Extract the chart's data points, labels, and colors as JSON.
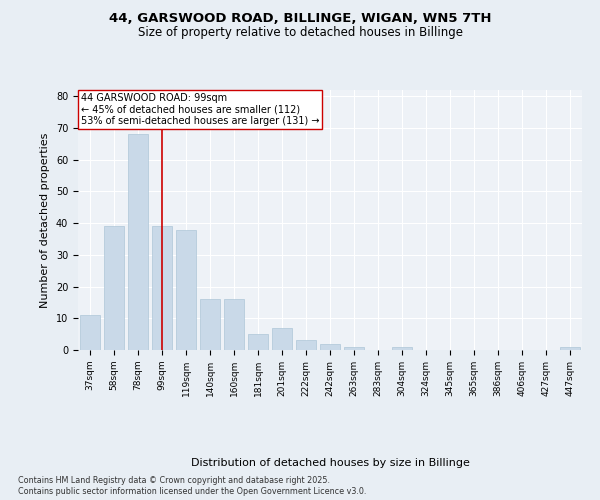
{
  "title1": "44, GARSWOOD ROAD, BILLINGE, WIGAN, WN5 7TH",
  "title2": "Size of property relative to detached houses in Billinge",
  "xlabel": "Distribution of detached houses by size in Billinge",
  "ylabel": "Number of detached properties",
  "categories": [
    "37sqm",
    "58sqm",
    "78sqm",
    "99sqm",
    "119sqm",
    "140sqm",
    "160sqm",
    "181sqm",
    "201sqm",
    "222sqm",
    "242sqm",
    "263sqm",
    "283sqm",
    "304sqm",
    "324sqm",
    "345sqm",
    "365sqm",
    "386sqm",
    "406sqm",
    "427sqm",
    "447sqm"
  ],
  "values": [
    11,
    39,
    68,
    39,
    38,
    16,
    16,
    5,
    7,
    3,
    2,
    1,
    0,
    1,
    0,
    0,
    0,
    0,
    0,
    0,
    1
  ],
  "bar_color": "#c9d9e8",
  "bar_edgecolor": "#aec6d8",
  "vline_x": 3,
  "vline_color": "#cc0000",
  "annotation_text": "44 GARSWOOD ROAD: 99sqm\n← 45% of detached houses are smaller (112)\n53% of semi-detached houses are larger (131) →",
  "annotation_box_color": "#ffffff",
  "annotation_box_edgecolor": "#cc0000",
  "footnote1": "Contains HM Land Registry data © Crown copyright and database right 2025.",
  "footnote2": "Contains public sector information licensed under the Open Government Licence v3.0.",
  "ylim": [
    0,
    82
  ],
  "yticks": [
    0,
    10,
    20,
    30,
    40,
    50,
    60,
    70,
    80
  ],
  "bg_color": "#e8eef4",
  "plot_bg_color": "#eef2f7",
  "grid_color": "#ffffff",
  "title_fontsize": 9.5,
  "subtitle_fontsize": 8.5,
  "tick_fontsize": 7,
  "label_fontsize": 8,
  "footnote_fontsize": 5.8,
  "annotation_fontsize": 7
}
